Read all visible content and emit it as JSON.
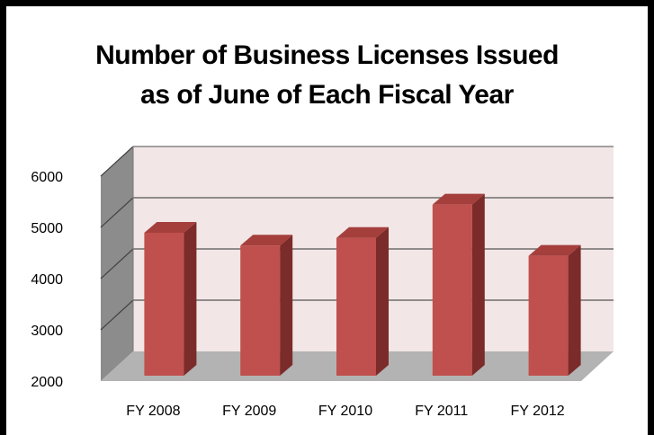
{
  "chart_data": {
    "type": "bar",
    "title_lines": [
      "Number of Business Licenses Issued",
      "as of June of Each Fiscal Year"
    ],
    "categories": [
      "FY 2008",
      "FY 2009",
      "FY 2010",
      "FY 2011",
      "FY 2012"
    ],
    "values": [
      5000,
      4750,
      4900,
      5550,
      4550
    ],
    "ylim": [
      2000,
      6000
    ],
    "yticks": [
      "2000",
      "3000",
      "4000",
      "5000",
      "6000"
    ],
    "grid": true,
    "legend": "none",
    "colors": {
      "bar_front": "#c0504d",
      "bar_side": "#7b2b29",
      "bar_top": "#a53f3c",
      "back_wall": "#f2e6e6",
      "side_wall": "#8c8c8c",
      "floor": "#b3b3b3"
    }
  }
}
